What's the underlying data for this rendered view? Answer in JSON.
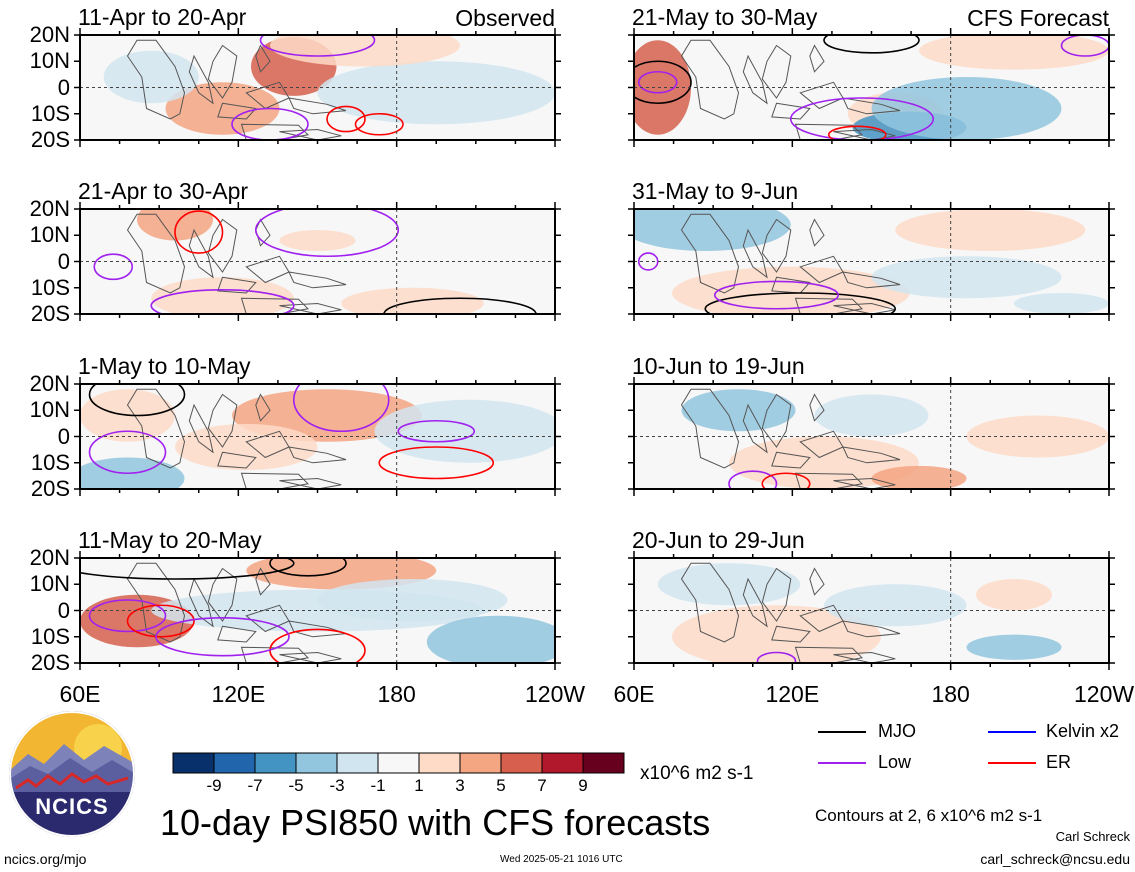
{
  "chart_data": {
    "type": "heatmap",
    "title": "10-day PSI850 with CFS forecasts",
    "variable": "PSI850",
    "units": "x10^6 m2 s-1",
    "x_ticks": [
      "60E",
      "120E",
      "180",
      "120W"
    ],
    "y_ticks": [
      "20N",
      "10N",
      "0",
      "10S",
      "20S"
    ],
    "xlim": [
      "60E",
      "120W"
    ],
    "ylim": [
      "20S",
      "20N"
    ],
    "observed_label": "Observed",
    "forecast_label": "CFS Forecast",
    "panels": [
      {
        "title": "11-Apr to 20-Apr",
        "column": 0,
        "row": 0,
        "kind": "observed"
      },
      {
        "title": "21-Apr to 30-Apr",
        "column": 0,
        "row": 1,
        "kind": "observed"
      },
      {
        "title": "1-May to 10-May",
        "column": 0,
        "row": 2,
        "kind": "observed"
      },
      {
        "title": "11-May to 20-May",
        "column": 0,
        "row": 3,
        "kind": "observed"
      },
      {
        "title": "21-May to 30-May",
        "column": 1,
        "row": 0,
        "kind": "forecast"
      },
      {
        "title": "31-May to 9-Jun",
        "column": 1,
        "row": 1,
        "kind": "forecast"
      },
      {
        "title": "10-Jun to 19-Jun",
        "column": 1,
        "row": 2,
        "kind": "forecast"
      },
      {
        "title": "20-Jun to 29-Jun",
        "column": 1,
        "row": 3,
        "kind": "forecast"
      }
    ],
    "colorbar": {
      "labels": [
        "-9",
        "-7",
        "-5",
        "-3",
        "-1",
        "1",
        "3",
        "5",
        "7",
        "9"
      ],
      "colors": [
        "#08306b",
        "#2166ac",
        "#4393c3",
        "#92c5de",
        "#d1e5f0",
        "#f7f7f7",
        "#fddbc7",
        "#f4a582",
        "#d6604d",
        "#b2182b",
        "#67001f"
      ]
    },
    "legend": [
      {
        "label": "MJO",
        "color": "#000000"
      },
      {
        "label": "Kelvin x2",
        "color": "#0000ff"
      },
      {
        "label": "Low",
        "color": "#a020f0"
      },
      {
        "label": "ER",
        "color": "#ff0000"
      }
    ],
    "contours_note": "Contours at 2, 6 x10^6 m2 s-1"
  },
  "branding": {
    "logo_text": "NCICS",
    "url": "ncics.org/mjo",
    "timestamp": "Wed 2025-05-21 1016 UTC",
    "author": "Carl Schreck",
    "email": "carl_schreck@ncsu.edu"
  }
}
